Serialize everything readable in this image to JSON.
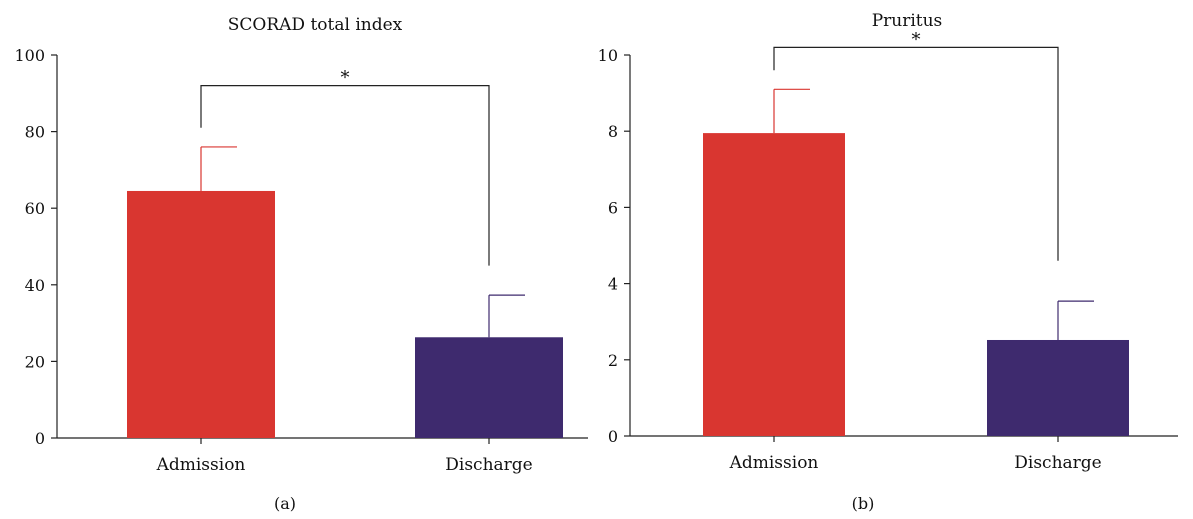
{
  "chart_data": [
    {
      "type": "bar",
      "panel_label": "(a)",
      "title": "SCORAD total index",
      "categories": [
        "Admission",
        "Discharge"
      ],
      "values": [
        64.5,
        26.3
      ],
      "errors": [
        11.5,
        11.0
      ],
      "colors": [
        "#d93630",
        "#3e2a6e"
      ],
      "ylim": [
        0,
        100
      ],
      "yticks": [
        "0",
        "20",
        "40",
        "60",
        "80",
        "100"
      ],
      "significance": {
        "label": "*",
        "left_y": 81,
        "right_y": 45,
        "top_y": 92
      }
    },
    {
      "type": "bar",
      "panel_label": "(b)",
      "title": "Pruritus",
      "categories": [
        "Admission",
        "Discharge"
      ],
      "values": [
        7.95,
        2.52
      ],
      "errors": [
        1.15,
        1.02
      ],
      "colors": [
        "#d93630",
        "#3e2a6e"
      ],
      "ylim": [
        0,
        10
      ],
      "yticks": [
        "0",
        "2",
        "4",
        "6",
        "8",
        "10"
      ],
      "significance": {
        "label": "*",
        "left_y": 9.6,
        "right_y": 4.6,
        "top_y": 10.2
      }
    }
  ]
}
